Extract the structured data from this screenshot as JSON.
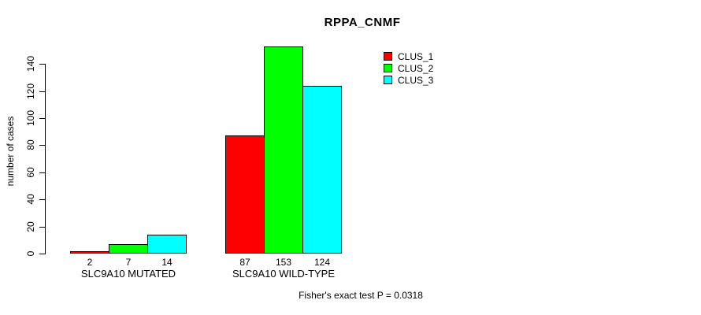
{
  "chart_data": {
    "type": "bar",
    "title": "RPPA_CNMF",
    "xlabel": "",
    "ylabel": "number of cases",
    "categories": [
      "SLC9A10 MUTATED",
      "SLC9A10 WILD-TYPE"
    ],
    "series": [
      {
        "name": "CLUS_1",
        "color": "#FF0000",
        "values": [
          2,
          87
        ]
      },
      {
        "name": "CLUS_2",
        "color": "#00FF00",
        "values": [
          7,
          153
        ]
      },
      {
        "name": "CLUS_3",
        "color": "#00FFFF",
        "values": [
          14,
          124
        ]
      }
    ],
    "yticks": [
      0,
      20,
      40,
      60,
      80,
      100,
      120,
      140
    ],
    "ylim": [
      0,
      153
    ],
    "grid": false,
    "legend_position": "top-right",
    "show_values_under_bars": true,
    "annotation": "Fisher's exact test P = 0.0318"
  },
  "colors": {
    "axis": "#000000",
    "text": "#000000",
    "background": "#FFFFFF"
  }
}
